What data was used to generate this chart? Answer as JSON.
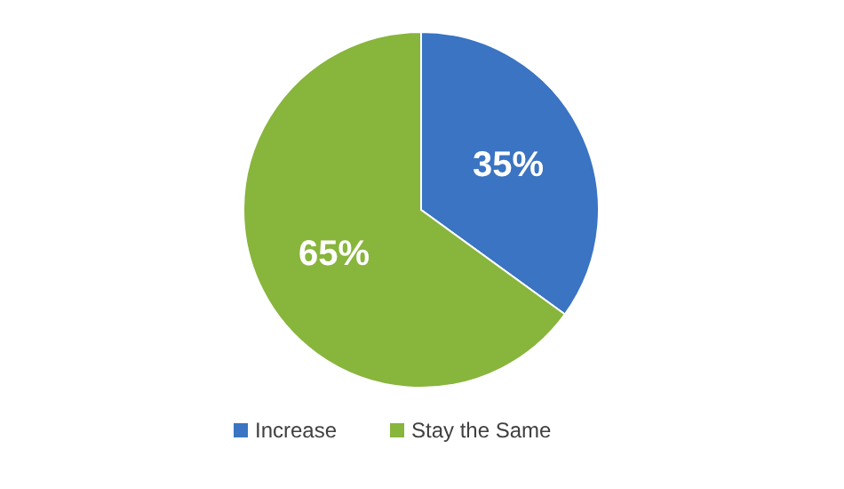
{
  "chart_data": {
    "type": "pie",
    "categories": [
      "Increase",
      "Stay the Same"
    ],
    "values": [
      35,
      65
    ],
    "colors": [
      "#3a74c2",
      "#88b53c"
    ],
    "value_labels": [
      "35%",
      "65%"
    ],
    "legend": "bottom"
  }
}
